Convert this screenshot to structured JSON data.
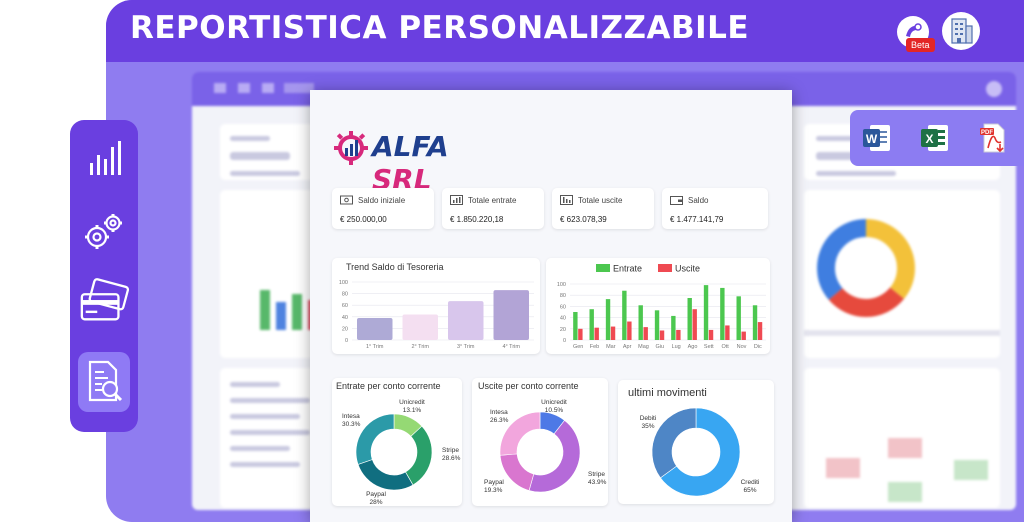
{
  "banner": {
    "title": "REPORTISTICA PERSONALIZZABILE",
    "beta_label": "Beta"
  },
  "sidebar": {
    "items": [
      "analytics-icon",
      "settings-gears-icon",
      "cards-icon",
      "report-search-icon"
    ]
  },
  "export": {
    "items": [
      "word-icon",
      "excel-icon",
      "pdf-icon"
    ]
  },
  "report": {
    "company": {
      "first": "ALFA",
      "second": "SRL"
    },
    "summary": [
      {
        "label": "Saldo iniziale",
        "value": "€ 250.000,00"
      },
      {
        "label": "Totale entrate",
        "value": "€ 1.850.220,18"
      },
      {
        "label": "Totale uscite",
        "value": "€ 623.078,39"
      },
      {
        "label": "Saldo",
        "value": "€ 1.477.141,79"
      }
    ]
  },
  "colors": {
    "purple": "#6a3fe0",
    "green": "#4cc74f",
    "red": "#ef4a52",
    "teal": "#1a8f9c",
    "pink": "#e35bb5"
  },
  "chart_data": [
    {
      "type": "bar",
      "title": "Trend Saldo di Tesoreria",
      "categories": [
        "1° Trim",
        "2° Trim",
        "3° Trim",
        "4° Trim"
      ],
      "values": [
        38,
        44,
        67,
        86
      ],
      "ylim": [
        0,
        100
      ],
      "yticks": [
        "100",
        "80",
        "60",
        "40",
        "20",
        "0"
      ],
      "colors": [
        "#aeaad6",
        "#f4dff1",
        "#d8c6ec",
        "#b2a4d6"
      ]
    },
    {
      "type": "bar",
      "categories": [
        "Gen",
        "Feb",
        "Mar",
        "Apr",
        "Mag",
        "Giu",
        "Lug",
        "Ago",
        "Sett",
        "Ott",
        "Nov",
        "Dic"
      ],
      "yticks": [
        "100",
        "80",
        "60",
        "40",
        "20",
        "0"
      ],
      "ylim": [
        0,
        100
      ],
      "series": [
        {
          "name": "Entrate",
          "values": [
            50,
            55,
            73,
            88,
            62,
            53,
            43,
            75,
            98,
            93,
            78,
            62
          ]
        },
        {
          "name": "Uscite",
          "values": [
            20,
            22,
            24,
            33,
            23,
            17,
            18,
            55,
            18,
            26,
            15,
            32
          ]
        }
      ]
    },
    {
      "type": "pie",
      "title": "Entrate per conto corrente",
      "slices": [
        {
          "name": "Unicredit",
          "value": 13.1,
          "label": "13.1%",
          "color": "#95d974"
        },
        {
          "name": "Stripe",
          "value": 28.6,
          "label": "28.6%",
          "color": "#2aa06a"
        },
        {
          "name": "Paypal",
          "value": 28,
          "label": "28%",
          "color": "#106e80"
        },
        {
          "name": "Intesa",
          "value": 30.3,
          "label": "30.3%",
          "color": "#2b9aa8"
        }
      ]
    },
    {
      "type": "pie",
      "title": "Uscite per conto corrente",
      "slices": [
        {
          "name": "Unicredit",
          "value": 10.5,
          "label": "10.5%",
          "color": "#4d79e6"
        },
        {
          "name": "Stripe",
          "value": 43.9,
          "label": "43.9%",
          "color": "#b56ad9"
        },
        {
          "name": "Paypal",
          "value": 19.3,
          "label": "19.3%",
          "color": "#d976cf"
        },
        {
          "name": "Intesa",
          "value": 26.3,
          "label": "26.3%",
          "color": "#f2a6dd"
        }
      ]
    },
    {
      "type": "pie",
      "title": "ultimi movimenti",
      "slices": [
        {
          "name": "Crediti",
          "value": 65,
          "label": "65%",
          "color": "#38a6f2"
        },
        {
          "name": "Debiti",
          "value": 35,
          "label": "35%",
          "color": "#4e86c6"
        }
      ]
    }
  ]
}
